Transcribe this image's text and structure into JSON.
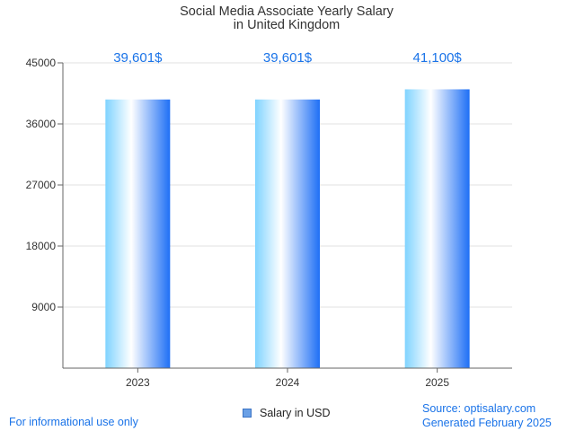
{
  "chart_data": {
    "type": "bar",
    "title": "Social Media Associate Yearly Salary",
    "subtitle": "in United Kingdom",
    "categories": [
      "2023",
      "2024",
      "2025"
    ],
    "values": [
      39601,
      39601,
      41100
    ],
    "value_labels": [
      "39,601$",
      "39,601$",
      "41,100$"
    ],
    "xlabel": "",
    "ylabel": "",
    "ylim": [
      0,
      45000
    ],
    "yticks": [
      9000,
      18000,
      27000,
      36000,
      45000
    ],
    "grid": true,
    "legend": [
      {
        "name": "Salary in USD",
        "color": "#6aa0e6"
      }
    ],
    "legend_position": "bottom-center"
  },
  "footer": {
    "disclaimer": "For informational use only",
    "source": "Source: optisalary.com",
    "generated": "Generated February 2025"
  },
  "colors": {
    "label_blue": "#1a73e8",
    "bar_light": "#7fd3ff",
    "bar_white": "#ffffff",
    "bar_dark": "#1e6ff5",
    "grid": "#e0e0e0",
    "axis": "#666666"
  }
}
